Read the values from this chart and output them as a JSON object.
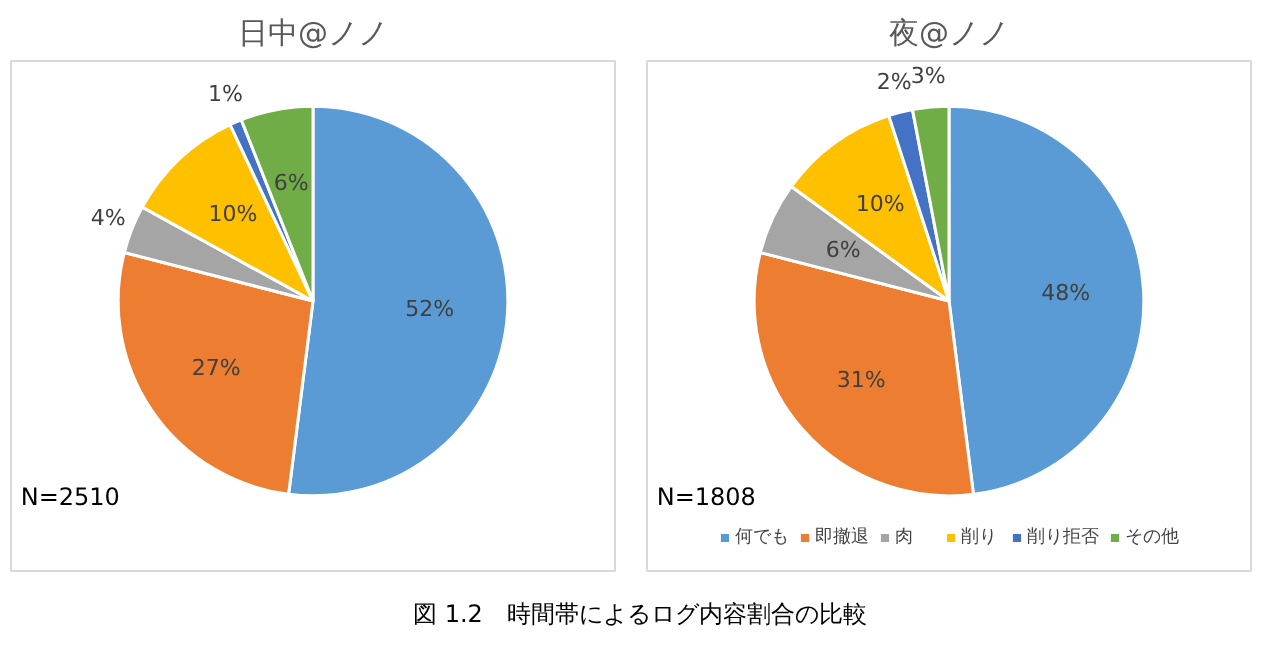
{
  "chart_data": [
    {
      "type": "pie",
      "title": "日中@ノノ",
      "categories": [
        "何でも",
        "即撤退",
        "肉",
        "削り",
        "削り拒否",
        "その他"
      ],
      "values": [
        52,
        27,
        4,
        10,
        1,
        6
      ],
      "colors": [
        "#5b9bd5",
        "#ed7d31",
        "#a5a5a5",
        "#ffc000",
        "#4472c4",
        "#70ad47"
      ],
      "value_labels": [
        "52%",
        "27%",
        "4%",
        "10%",
        "1%",
        "6%"
      ],
      "legend": "bottom right",
      "annotations": [
        "N=2510",
        "図 1.2　時間帯によるログ内容割合の比較"
      ]
    },
    {
      "type": "pie",
      "title": "夜@ノノ",
      "categories": [
        null,
        null,
        null,
        null,
        null,
        null
      ],
      "values": [
        48,
        31,
        6,
        10,
        2,
        3
      ],
      "colors": [
        "#5b9bd5",
        "#ed7d31",
        "#a5a5a5",
        "#ffc000",
        "#4472c4",
        "#70ad47"
      ],
      "value_labels": [
        "48%",
        "31%",
        "6%",
        "10%",
        "2%",
        "3%"
      ],
      "annotations": [
        "N=1808"
      ]
    }
  ]
}
